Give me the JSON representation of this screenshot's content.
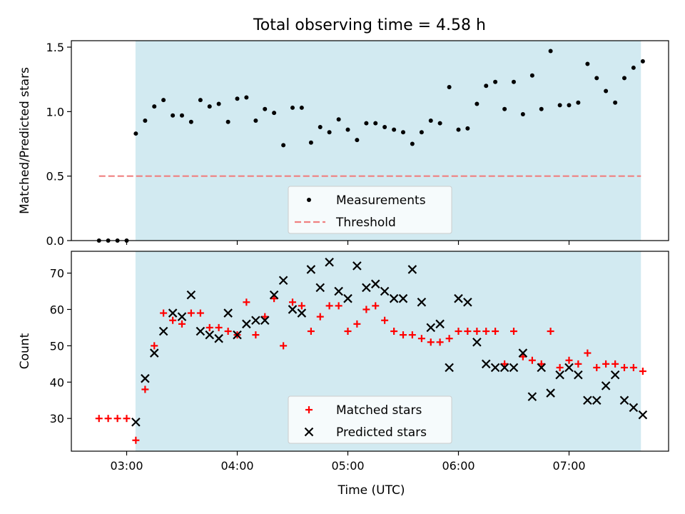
{
  "figure": {
    "title": "Total observing time = 4.58 h"
  },
  "chart_data": [
    {
      "type": "scatter",
      "panel": "top",
      "ylabel": "Matched/Predicted stars",
      "ylim": [
        0,
        1.55
      ],
      "yticks": [
        0.0,
        0.5,
        1.0,
        1.5
      ],
      "ytick_labels": [
        "0.0",
        "0.5",
        "1.0",
        "1.5"
      ],
      "xlim_hours": [
        2.5,
        7.9
      ],
      "shaded_span_hours": [
        3.08,
        7.65
      ],
      "shade_color": "#add8e6",
      "threshold": {
        "value": 0.5,
        "x_hours": [
          2.75,
          7.65
        ],
        "color": "#f08080"
      },
      "legend": {
        "placement": "lower center",
        "entries": [
          "Measurements",
          "Threshold"
        ]
      },
      "series": [
        {
          "name": "Measurements",
          "color": "#000000",
          "x_hours": [
            2.75,
            2.833,
            2.917,
            3.0,
            3.083,
            3.167,
            3.25,
            3.333,
            3.417,
            3.5,
            3.583,
            3.667,
            3.75,
            3.833,
            3.917,
            4.0,
            4.083,
            4.167,
            4.25,
            4.333,
            4.417,
            4.5,
            4.583,
            4.667,
            4.75,
            4.833,
            4.917,
            5.0,
            5.083,
            5.167,
            5.25,
            5.333,
            5.417,
            5.5,
            5.583,
            5.667,
            5.75,
            5.833,
            5.917,
            6.0,
            6.083,
            6.167,
            6.25,
            6.333,
            6.417,
            6.5,
            6.583,
            6.667,
            6.75,
            6.833,
            6.917,
            7.0,
            7.083,
            7.167,
            7.25,
            7.333,
            7.417,
            7.5,
            7.583,
            7.667
          ],
          "values": [
            0.0,
            0.0,
            0.0,
            0.0,
            0.83,
            0.93,
            1.04,
            1.09,
            0.97,
            0.97,
            0.92,
            1.09,
            1.04,
            1.06,
            0.92,
            1.1,
            1.11,
            0.93,
            1.02,
            0.99,
            0.74,
            1.03,
            1.03,
            0.76,
            0.88,
            0.84,
            0.94,
            0.86,
            0.78,
            0.91,
            0.91,
            0.88,
            0.86,
            0.84,
            0.75,
            0.84,
            0.93,
            0.91,
            1.19,
            0.86,
            0.87,
            1.06,
            1.2,
            1.23,
            1.02,
            1.23,
            0.98,
            1.28,
            1.02,
            1.47,
            1.05,
            1.05,
            1.07,
            1.37,
            1.26,
            1.16,
            1.07,
            1.26,
            1.34,
            1.39
          ]
        }
      ]
    },
    {
      "type": "scatter",
      "panel": "bottom",
      "ylabel": "Count",
      "xlabel": "Time (UTC)",
      "ylim": [
        21,
        76
      ],
      "yticks": [
        30,
        40,
        50,
        60,
        70
      ],
      "ytick_labels": [
        "30",
        "40",
        "50",
        "60",
        "70"
      ],
      "xlim_hours": [
        2.5,
        7.9
      ],
      "xticks_hours": [
        3,
        4,
        5,
        6,
        7
      ],
      "xtick_labels": [
        "03:00",
        "04:00",
        "05:00",
        "06:00",
        "07:00"
      ],
      "shaded_span_hours": [
        3.08,
        7.65
      ],
      "shade_color": "#add8e6",
      "legend": {
        "placement": "lower center",
        "entries": [
          "Matched stars",
          "Predicted stars"
        ]
      },
      "series": [
        {
          "name": "Matched stars",
          "marker": "plus",
          "color": "#ff0000",
          "x_hours": [
            2.75,
            2.833,
            2.917,
            3.0,
            3.083,
            3.167,
            3.25,
            3.333,
            3.417,
            3.5,
            3.583,
            3.667,
            3.75,
            3.833,
            3.917,
            4.0,
            4.083,
            4.167,
            4.25,
            4.333,
            4.417,
            4.5,
            4.583,
            4.667,
            4.75,
            4.833,
            4.917,
            5.0,
            5.083,
            5.167,
            5.25,
            5.333,
            5.417,
            5.5,
            5.583,
            5.667,
            5.75,
            5.833,
            5.917,
            6.0,
            6.083,
            6.167,
            6.25,
            6.333,
            6.417,
            6.5,
            6.583,
            6.667,
            6.75,
            6.833,
            6.917,
            7.0,
            7.083,
            7.167,
            7.25,
            7.333,
            7.417,
            7.5,
            7.583,
            7.667
          ],
          "values": [
            30,
            30,
            30,
            30,
            24,
            38,
            50,
            59,
            57,
            56,
            59,
            59,
            55,
            55,
            54,
            53,
            62,
            53,
            58,
            63,
            50,
            62,
            61,
            54,
            58,
            61,
            61,
            54,
            56,
            60,
            61,
            57,
            54,
            53,
            53,
            52,
            51,
            51,
            52,
            54,
            54,
            54,
            54,
            54,
            45,
            54,
            47,
            46,
            45,
            54,
            44,
            46,
            45,
            48,
            44,
            45,
            45,
            44,
            44,
            43
          ]
        },
        {
          "name": "Predicted stars",
          "marker": "x",
          "color": "#000000",
          "x_hours": [
            3.083,
            3.167,
            3.25,
            3.333,
            3.417,
            3.5,
            3.583,
            3.667,
            3.75,
            3.833,
            3.917,
            4.0,
            4.083,
            4.167,
            4.25,
            4.333,
            4.417,
            4.5,
            4.583,
            4.667,
            4.75,
            4.833,
            4.917,
            5.0,
            5.083,
            5.167,
            5.25,
            5.333,
            5.417,
            5.5,
            5.583,
            5.667,
            5.75,
            5.833,
            5.917,
            6.0,
            6.083,
            6.167,
            6.25,
            6.333,
            6.417,
            6.5,
            6.583,
            6.667,
            6.75,
            6.833,
            6.917,
            7.0,
            7.083,
            7.167,
            7.25,
            7.333,
            7.417,
            7.5,
            7.583,
            7.667
          ],
          "values": [
            29,
            41,
            48,
            54,
            59,
            58,
            64,
            54,
            53,
            52,
            59,
            53,
            56,
            57,
            57,
            64,
            68,
            60,
            59,
            71,
            66,
            73,
            65,
            63,
            72,
            66,
            67,
            65,
            63,
            63,
            71,
            62,
            55,
            56,
            44,
            63,
            62,
            51,
            45,
            44,
            44,
            44,
            48,
            36,
            44,
            37,
            42,
            44,
            42,
            35,
            35,
            39,
            42,
            35,
            33,
            31
          ]
        }
      ]
    }
  ]
}
